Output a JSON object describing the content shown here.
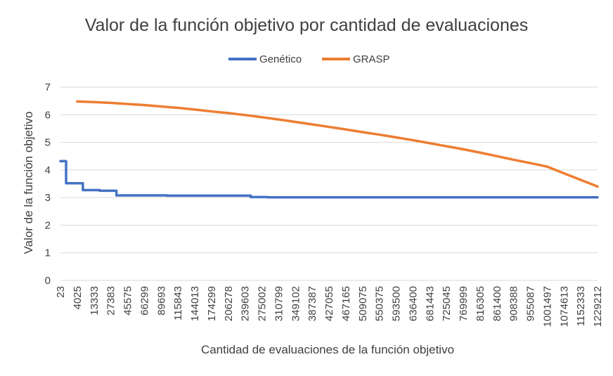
{
  "chart_data": {
    "type": "line",
    "title": "Valor de la función objetivo por cantidad de evaluaciones",
    "xlabel": "Cantidad de evaluaciones de la función objetivo",
    "ylabel": "Valor de la función objetivo",
    "ylim": [
      0,
      7
    ],
    "yticks": [
      "0",
      "1",
      "2",
      "3",
      "4",
      "5",
      "6",
      "7"
    ],
    "grid": true,
    "legend_position": "top",
    "categories": [
      "23",
      "4025",
      "13333",
      "27383",
      "45575",
      "66299",
      "89693",
      "115843",
      "144013",
      "174299",
      "206278",
      "239603",
      "275002",
      "310799",
      "349102",
      "387387",
      "427055",
      "467165",
      "509075",
      "550375",
      "593500",
      "636400",
      "681443",
      "725045",
      "769999",
      "816305",
      "861400",
      "908388",
      "955087",
      "1001497",
      "1074613",
      "1152333",
      "1229212"
    ],
    "series": [
      {
        "name": "Genético",
        "color": "#4472C4",
        "values": [
          4.32,
          3.52,
          3.27,
          3.25,
          3.08,
          3.08,
          3.08,
          3.07,
          3.07,
          3.07,
          3.07,
          3.07,
          3.02,
          3.01,
          3.01,
          3.01,
          3.01,
          3.01,
          3.01,
          3.01,
          3.01,
          3.01,
          3.01,
          3.01,
          3.01,
          3.01,
          3.01,
          3.01,
          3.01,
          3.01,
          3.01,
          3.01,
          3.01
        ]
      },
      {
        "name": "GRASP",
        "color": "#ED7D31",
        "values": [
          null,
          6.48,
          6.46,
          6.43,
          6.39,
          6.35,
          6.3,
          6.25,
          6.19,
          6.12,
          6.06,
          5.99,
          5.91,
          5.83,
          5.74,
          5.65,
          5.56,
          5.47,
          5.37,
          5.28,
          5.18,
          5.08,
          4.97,
          4.86,
          4.75,
          4.63,
          4.5,
          4.37,
          4.25,
          4.12,
          3.88,
          3.64,
          3.4
        ]
      }
    ]
  }
}
